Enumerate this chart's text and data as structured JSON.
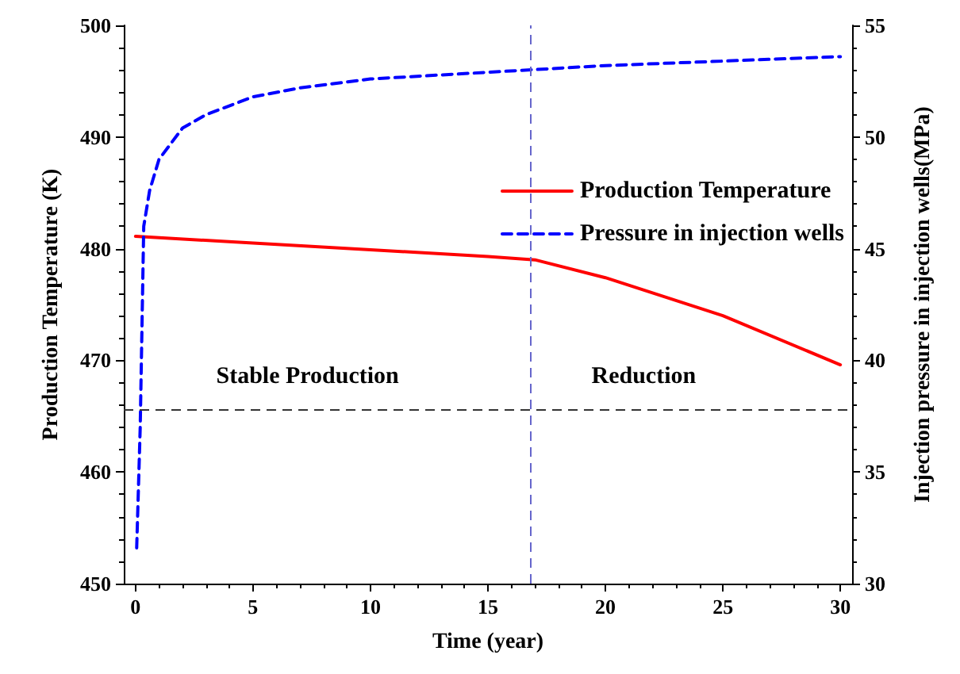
{
  "chart_data": {
    "type": "line",
    "xlabel": "Time (year)",
    "ylabel": "Production Temperature (K)",
    "y2label": "Injection pressure in injection wells(MPa)",
    "xlim": [
      -0.5,
      30.5
    ],
    "xticks": [
      0,
      5,
      10,
      15,
      20,
      25,
      30
    ],
    "ylim": [
      450,
      500
    ],
    "yticks": [
      450,
      460,
      470,
      480,
      490,
      500
    ],
    "y2lim": [
      30,
      55
    ],
    "y2ticks": [
      30,
      35,
      40,
      45,
      50,
      55
    ],
    "series": [
      {
        "name": "Production Temperature",
        "color": "#ff0000",
        "line_style": "solid",
        "x": [
          0,
          5,
          10,
          15,
          17,
          20,
          25,
          30
        ],
        "values": [
          481.1,
          480.5,
          479.9,
          479.3,
          479,
          477.4,
          474,
          469.6
        ]
      },
      {
        "name": "Pressure in injection wells",
        "color": "#0000ff",
        "line_style": "dashed",
        "axis": "y2",
        "x": [
          0.05,
          0.2,
          0.35,
          0.6,
          1,
          2,
          3,
          5,
          7,
          10,
          15,
          20,
          25,
          30
        ],
        "values": [
          31.6,
          37,
          46,
          47.6,
          49,
          50.4,
          51,
          51.8,
          52.2,
          52.6,
          52.9,
          53.2,
          53.4,
          53.6
        ]
      }
    ],
    "ref_lines": [
      {
        "axis": "y",
        "value": 465.6,
        "color": "#333333",
        "line_style": "dashed"
      },
      {
        "axis": "x",
        "value": 16.8,
        "color": "#6666cc",
        "line_style": "dashed"
      }
    ],
    "annotations": [
      "Stable Production",
      "Reduction"
    ],
    "legend": "top right",
    "marker": "none",
    "grid": false
  }
}
